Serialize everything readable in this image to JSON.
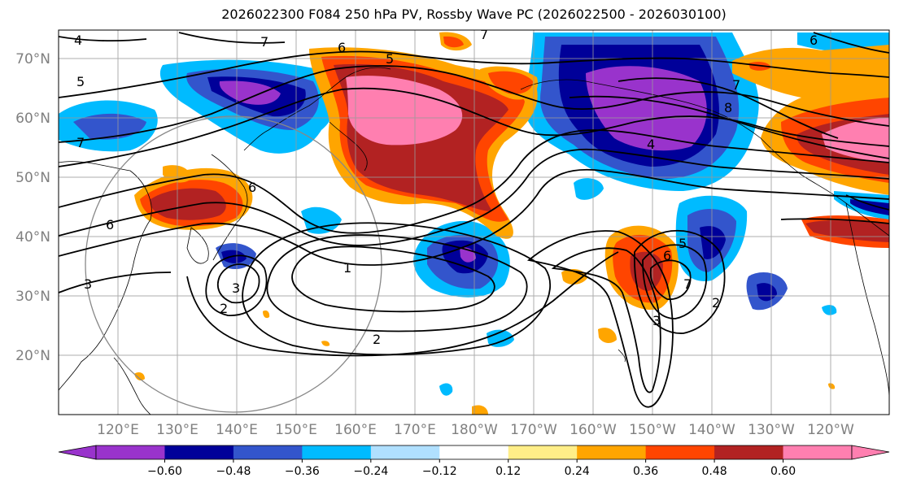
{
  "title": "2026022300 F084 250 hPa PV, Rossby Wave PC (2026022500 - 2026030100)",
  "axes": {
    "lat_labels": [
      "70°N",
      "60°N",
      "50°N",
      "40°N",
      "30°N",
      "20°N"
    ],
    "lon_labels": [
      "120°E",
      "130°E",
      "140°E",
      "150°E",
      "160°E",
      "170°E",
      "180°W",
      "170°W",
      "160°W",
      "150°W",
      "140°W",
      "130°W",
      "120°W"
    ],
    "label_color": "#808080"
  },
  "colorbar": {
    "colors": [
      "#9933cc",
      "#000099",
      "#3355cc",
      "#00bbff",
      "#b0e0ff",
      "#ffffff",
      "#ffee88",
      "#ffa500",
      "#ff4500",
      "#b22222",
      "#ff7fb0"
    ],
    "tick_labels": [
      "−0.60",
      "−0.48",
      "−0.36",
      "−0.24",
      "−0.12",
      "0.12",
      "0.24",
      "0.36",
      "0.48",
      "0.60"
    ]
  },
  "contour_labels": [
    "5",
    "7",
    "6",
    "5",
    "7",
    "6",
    "7",
    "8",
    "4",
    "6",
    "3",
    "1",
    "2",
    "2",
    "3",
    "2",
    "5",
    "6",
    "7",
    "3",
    "4",
    "7",
    "6"
  ]
}
